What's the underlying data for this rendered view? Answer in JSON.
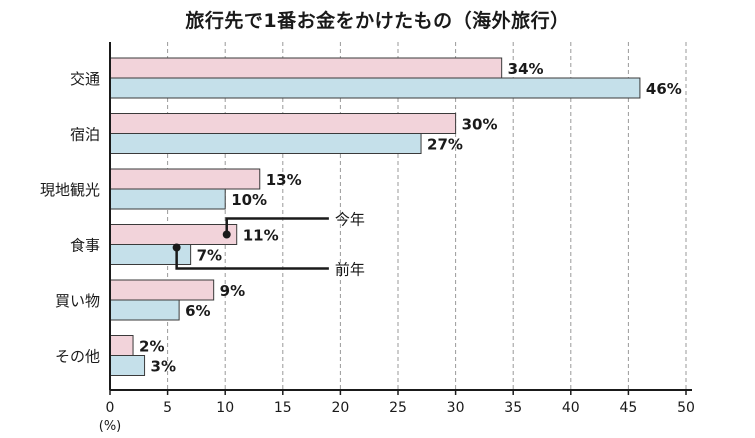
{
  "chart_data": {
    "type": "bar",
    "orientation": "horizontal",
    "title": "旅行先で1番お金をかけたもの（海外旅行）",
    "categories": [
      "交通",
      "宿泊",
      "現地観光",
      "食事",
      "買い物",
      "その他"
    ],
    "series": [
      {
        "name": "今年",
        "values": [
          34,
          30,
          13,
          11,
          9,
          2
        ],
        "color": "#f2d3da"
      },
      {
        "name": "前年",
        "values": [
          46,
          27,
          10,
          7,
          6,
          3
        ],
        "color": "#c5e0ea"
      }
    ],
    "value_suffix": "%",
    "xlim": [
      0,
      50
    ],
    "xticks": [
      0,
      5,
      10,
      15,
      20,
      25,
      30,
      35,
      40,
      45,
      50
    ],
    "xlabel": "(%)",
    "grid": "vertical-dashed",
    "annotations": [
      {
        "label": "今年",
        "series": "今年",
        "category": "食事"
      },
      {
        "label": "前年",
        "series": "前年",
        "category": "食事"
      }
    ]
  }
}
